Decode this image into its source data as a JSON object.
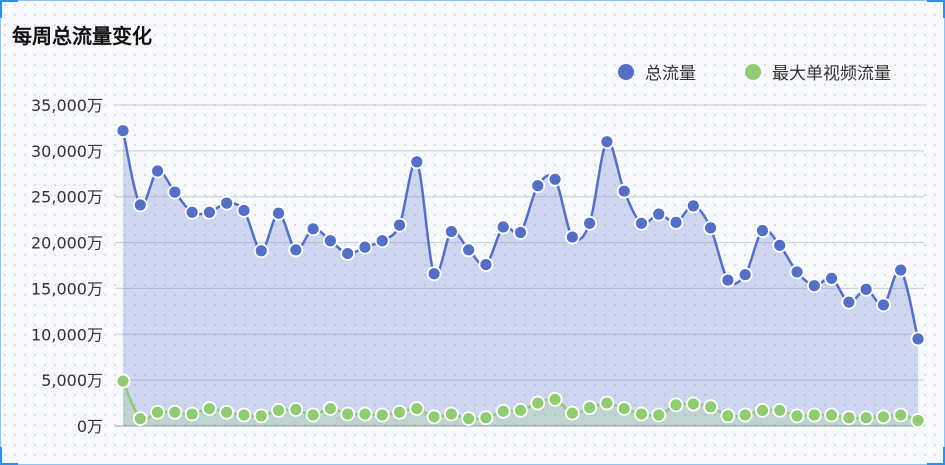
{
  "chart_data": {
    "type": "area",
    "title": "每周总流量变化",
    "xlabel": "",
    "ylabel": "",
    "ylim": [
      0,
      35000
    ],
    "yticks": [
      "0万",
      "5,000万",
      "10,000万",
      "15,000万",
      "20,000万",
      "25,000万",
      "30,000万",
      "35,000万"
    ],
    "grid": true,
    "legend_position": "top-right",
    "series": [
      {
        "name": "总流量",
        "color": "#5470c6",
        "values": [
          32200,
          24100,
          27800,
          25500,
          23300,
          23300,
          24300,
          23500,
          19100,
          23200,
          19200,
          21500,
          20200,
          18800,
          19500,
          20200,
          21900,
          28800,
          16600,
          21200,
          19200,
          17600,
          21700,
          21100,
          26200,
          26900,
          20600,
          22100,
          31000,
          25600,
          22100,
          23100,
          22200,
          24000,
          21600,
          15900,
          16500,
          21300,
          19700,
          16800,
          15300,
          16100,
          13500,
          14900,
          13200,
          17000,
          9500
        ]
      },
      {
        "name": "最大单视频流量",
        "color": "#91cc75",
        "values": [
          4900,
          800,
          1500,
          1500,
          1300,
          1900,
          1500,
          1200,
          1100,
          1700,
          1800,
          1200,
          1900,
          1300,
          1300,
          1200,
          1500,
          1900,
          1000,
          1300,
          800,
          900,
          1600,
          1700,
          2500,
          2900,
          1400,
          2000,
          2500,
          1900,
          1300,
          1200,
          2300,
          2400,
          2100,
          1100,
          1200,
          1700,
          1700,
          1100,
          1200,
          1200,
          900,
          900,
          1000,
          1200,
          600
        ]
      }
    ]
  }
}
